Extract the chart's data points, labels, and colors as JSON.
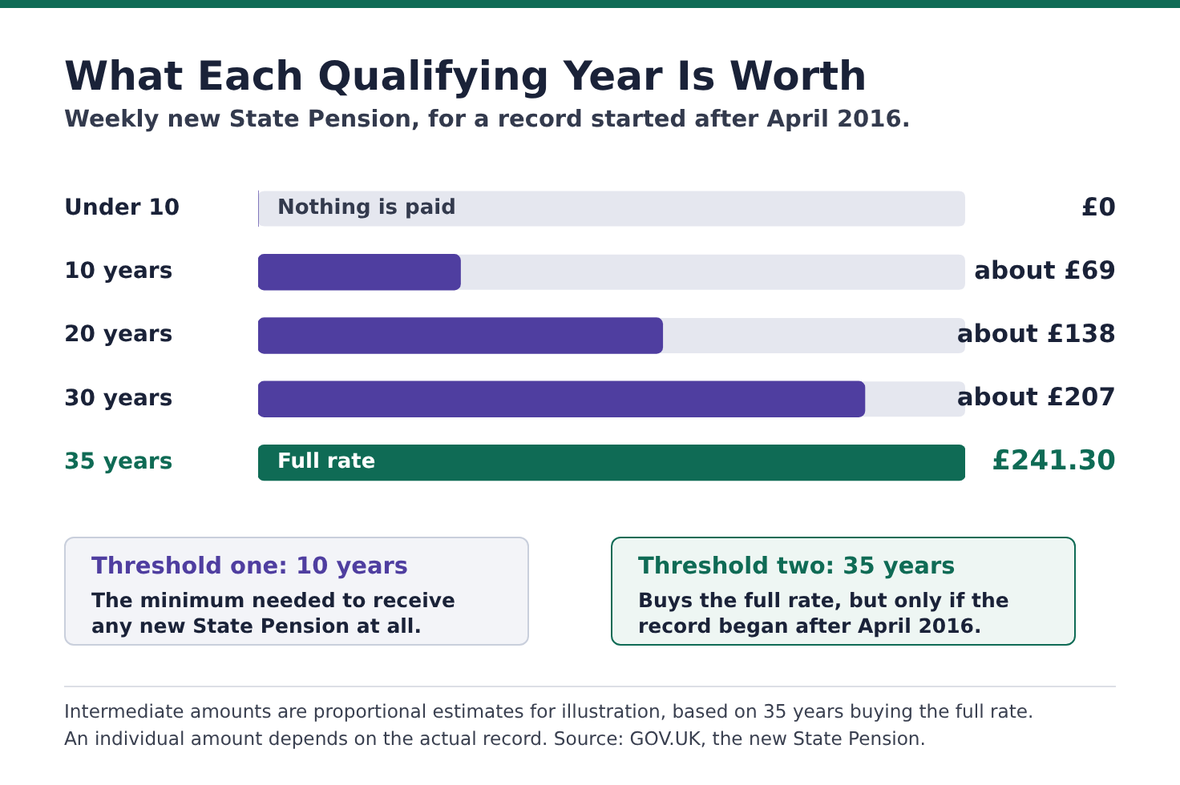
{
  "chart_data": {
    "type": "bar",
    "orientation": "horizontal",
    "title": "What Each Qualifying Year Is Worth",
    "subtitle": "Weekly new State Pension, for a record started after April 2016.",
    "categories": [
      "Under 10",
      "10 years",
      "20 years",
      "30 years",
      "35 years"
    ],
    "values": [
      0,
      69,
      138,
      207,
      241.3
    ],
    "colors": [
      "#4f3ea0",
      "#4f3ea0",
      "#4f3ea0",
      "#4f3ea0",
      "#0f6b55"
    ],
    "value_labels": [
      "£0",
      "about £69",
      "about £138",
      "about £207",
      "£241.30"
    ],
    "xlim": [
      0,
      241.3
    ],
    "tick_labels": "y",
    "grid": false,
    "legend": false,
    "annotations": [
      "Nothing is paid",
      "Full rate",
      "Threshold one: 10 years",
      "The minimum needed to receive any new State Pension at all.",
      "Threshold two: 35 years",
      "Buys the full rate, but only if the record began after April 2016.",
      "Intermediate amounts are proportional estimates for illustration, based on 35 years buying the full rate.",
      "An individual amount depends on the actual record. Source: GOV.UK, the new State Pension."
    ]
  }
}
